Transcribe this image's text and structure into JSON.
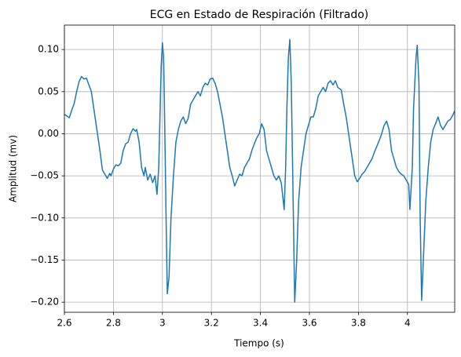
{
  "chart_data": {
    "type": "line",
    "title": "ECG en Estado de Respiración (Filtrado)",
    "x_label": "Tiempo (s)",
    "y_label": "Amplitud (mv)",
    "color": "#1f77b4",
    "grid": true,
    "xlim": [
      2.6,
      4.193
    ],
    "ylim": [
      -0.212,
      0.129
    ],
    "xticks": [
      2.6,
      2.8,
      3.0,
      3.2,
      3.4,
      3.6,
      3.8,
      4.0
    ],
    "yticks": [
      {
        "value": 0.1,
        "label": "0.10"
      },
      {
        "value": 0.05,
        "label": "0.05"
      },
      {
        "value": 0,
        "label": "0.00"
      },
      {
        "value": -0.05,
        "label": "−0.05"
      },
      {
        "value": -0.1,
        "label": "−0.10"
      },
      {
        "value": -0.15,
        "label": "−0.15"
      },
      {
        "value": -0.2,
        "label": "−0.20"
      }
    ],
    "x": [
      2.6,
      2.61,
      2.62,
      2.63,
      2.64,
      2.65,
      2.66,
      2.67,
      2.68,
      2.69,
      2.7,
      2.71,
      2.72,
      2.735,
      2.745,
      2.755,
      2.765,
      2.775,
      2.785,
      2.79,
      2.8,
      2.81,
      2.82,
      2.83,
      2.84,
      2.85,
      2.86,
      2.87,
      2.88,
      2.89,
      2.895,
      2.905,
      2.915,
      2.925,
      2.93,
      2.94,
      2.95,
      2.96,
      2.97,
      2.978,
      2.985,
      2.99,
      2.995,
      3.0,
      3.005,
      3.01,
      3.015,
      3.02,
      3.027,
      3.035,
      3.045,
      3.055,
      3.065,
      3.075,
      3.085,
      3.095,
      3.105,
      3.115,
      3.125,
      3.135,
      3.145,
      3.155,
      3.165,
      3.175,
      3.185,
      3.195,
      3.205,
      3.215,
      3.225,
      3.235,
      3.245,
      3.255,
      3.265,
      3.275,
      3.285,
      3.295,
      3.305,
      3.315,
      3.325,
      3.335,
      3.345,
      3.355,
      3.365,
      3.375,
      3.385,
      3.395,
      3.405,
      3.415,
      3.425,
      3.435,
      3.445,
      3.455,
      3.465,
      3.475,
      3.485,
      3.497,
      3.503,
      3.508,
      3.514,
      3.52,
      3.526,
      3.532,
      3.54,
      3.548,
      3.556,
      3.566,
      3.576,
      3.586,
      3.596,
      3.606,
      3.616,
      3.626,
      3.636,
      3.646,
      3.656,
      3.666,
      3.676,
      3.686,
      3.696,
      3.706,
      3.716,
      3.73,
      3.74,
      3.75,
      3.76,
      3.77,
      3.78,
      3.785,
      3.795,
      3.805,
      3.815,
      3.825,
      3.835,
      3.845,
      3.855,
      3.865,
      3.875,
      3.885,
      3.895,
      3.905,
      3.915,
      3.925,
      3.935,
      3.945,
      3.955,
      3.965,
      3.975,
      3.985,
      3.995,
      4.005,
      4.01,
      4.02,
      4.025,
      4.035,
      4.04,
      4.047,
      4.052,
      4.058,
      4.065,
      4.075,
      4.085,
      4.095,
      4.105,
      4.115,
      4.125,
      4.135,
      4.145,
      4.155,
      4.165,
      4.175,
      4.185,
      4.193
    ],
    "values": [
      0.023,
      0.021,
      0.019,
      0.028,
      0.036,
      0.05,
      0.062,
      0.068,
      0.065,
      0.066,
      0.058,
      0.05,
      0.03,
      0.0,
      -0.02,
      -0.043,
      -0.048,
      -0.053,
      -0.047,
      -0.05,
      -0.042,
      -0.037,
      -0.038,
      -0.035,
      -0.02,
      -0.012,
      -0.01,
      0.0,
      0.006,
      0.003,
      0.005,
      -0.01,
      -0.04,
      -0.05,
      -0.04,
      -0.055,
      -0.048,
      -0.058,
      -0.05,
      -0.072,
      -0.04,
      0.02,
      0.08,
      0.108,
      0.09,
      0.0,
      -0.1,
      -0.19,
      -0.17,
      -0.1,
      -0.05,
      -0.01,
      0.005,
      0.015,
      0.02,
      0.012,
      0.018,
      0.035,
      0.04,
      0.045,
      0.05,
      0.045,
      0.055,
      0.06,
      0.058,
      0.065,
      0.066,
      0.06,
      0.05,
      0.035,
      0.02,
      0.0,
      -0.02,
      -0.04,
      -0.05,
      -0.062,
      -0.055,
      -0.048,
      -0.05,
      -0.04,
      -0.035,
      -0.03,
      -0.02,
      -0.012,
      -0.005,
      0.0,
      0.012,
      0.005,
      -0.02,
      -0.03,
      -0.04,
      -0.05,
      -0.055,
      -0.05,
      -0.058,
      -0.09,
      -0.04,
      0.03,
      0.09,
      0.112,
      0.06,
      -0.05,
      -0.2,
      -0.15,
      -0.08,
      -0.04,
      -0.02,
      0.0,
      0.01,
      0.02,
      0.02,
      0.03,
      0.045,
      0.05,
      0.055,
      0.05,
      0.06,
      0.063,
      0.058,
      0.063,
      0.055,
      0.052,
      0.035,
      0.02,
      0.0,
      -0.02,
      -0.04,
      -0.05,
      -0.057,
      -0.053,
      -0.048,
      -0.045,
      -0.04,
      -0.035,
      -0.03,
      -0.022,
      -0.015,
      -0.008,
      0.0,
      0.01,
      0.015,
      0.005,
      -0.02,
      -0.03,
      -0.04,
      -0.045,
      -0.048,
      -0.05,
      -0.055,
      -0.06,
      -0.09,
      -0.04,
      0.03,
      0.09,
      0.105,
      0.06,
      -0.1,
      -0.198,
      -0.15,
      -0.08,
      -0.04,
      -0.01,
      0.005,
      0.012,
      0.02,
      0.01,
      0.005,
      0.01,
      0.015,
      0.017,
      0.022,
      0.027
    ]
  }
}
